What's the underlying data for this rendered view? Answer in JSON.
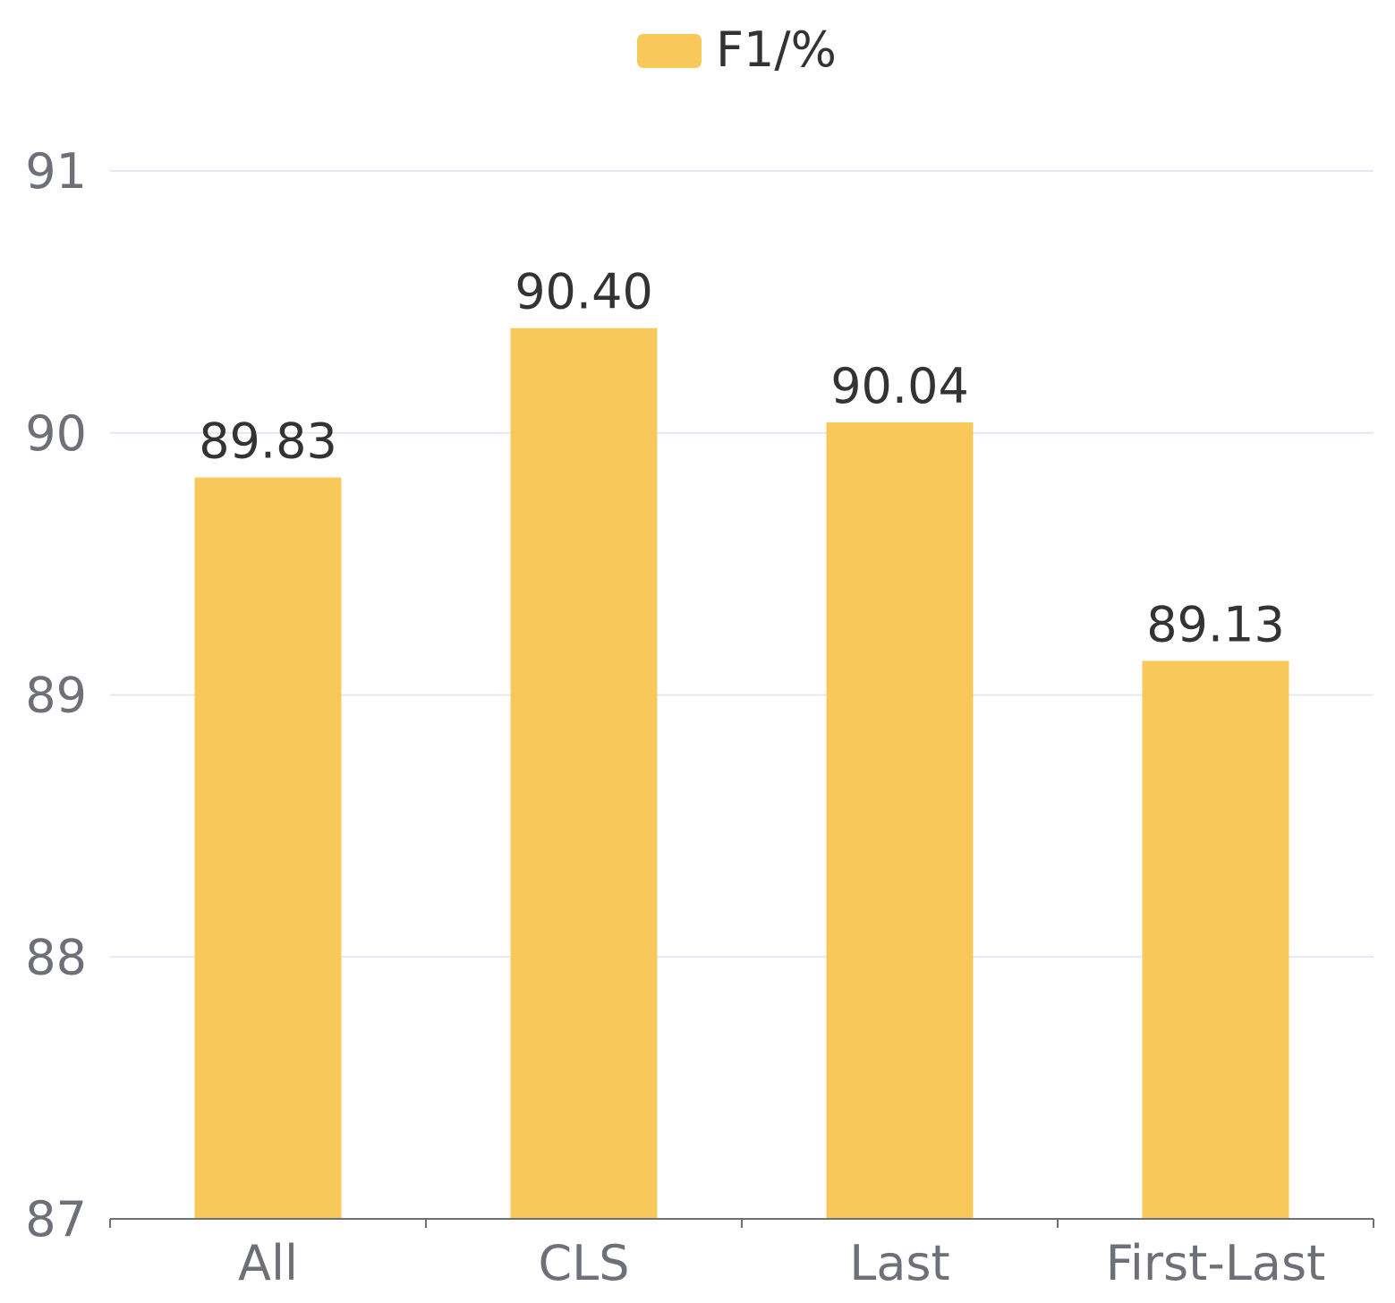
{
  "chart_data": {
    "type": "bar",
    "categories": [
      "All",
      "CLS",
      "Last",
      "First-Last"
    ],
    "series": [
      {
        "name": "F1/%",
        "values": [
          89.83,
          90.4,
          90.04,
          89.13
        ],
        "value_labels": [
          "89.83",
          "90.40",
          "90.04",
          "89.13"
        ]
      }
    ],
    "ylim": [
      87,
      91
    ],
    "yticks": [
      87,
      88,
      89,
      90,
      91
    ],
    "ytick_labels": [
      "87",
      "88",
      "89",
      "90",
      "91"
    ],
    "grid": true,
    "legend": "top-center",
    "colors": {
      "bar": "#f9c85a",
      "grid": "#e3e8f3",
      "axis": "#6e7079"
    }
  }
}
